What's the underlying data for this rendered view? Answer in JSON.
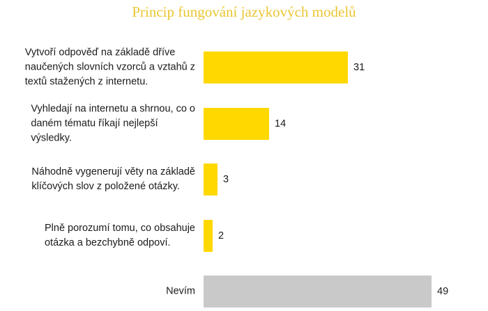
{
  "chart_data": {
    "type": "bar",
    "orientation": "horizontal",
    "title": "Princip fungování jazykových modelů",
    "xlabel": "",
    "ylabel": "",
    "grid": false,
    "legend": null,
    "categories": [
      "Vytvoří odpověď na základě dříve naučených slovních vzorců a vztahů z textů stažených z internetu.",
      "Vyhledají na internetu a shrnou, co o daném tématu říkají nejlepší výsledky.",
      "Náhodně vygenerují věty na základě klíčových slov z položené otázky.",
      "Plně porozumí tomu, co obsahuje otázka a bezchybně odpoví.",
      "Nevím"
    ],
    "values": [
      31,
      14,
      3,
      2,
      49
    ],
    "colors": [
      "#FFD800",
      "#FFD800",
      "#FFD800",
      "#FFD800",
      "#C9C9C9"
    ],
    "data_labels": [
      "31",
      "14",
      "3",
      "2",
      "49"
    ]
  },
  "title": "Princip fungování jazykových modelů",
  "rows": [
    {
      "label": "Vytvoří odpověď na základě dříve\nnaučených slovních vzorců a vztahů z\ntextů stažených z internetu.",
      "value": "31"
    },
    {
      "label": "Vyhledají na internetu a shrnou, co o\ndaném tématu říkají nejlepší\nvýsledky.",
      "value": "14"
    },
    {
      "label": "Náhodně vygenerují věty na základě\nklíčových slov z položené otázky.",
      "value": "3"
    },
    {
      "label": "Plně porozumí tomu, co obsahuje\notázka a bezchybně odpoví.",
      "value": "2"
    },
    {
      "label": "Nevím",
      "value": "49"
    }
  ]
}
